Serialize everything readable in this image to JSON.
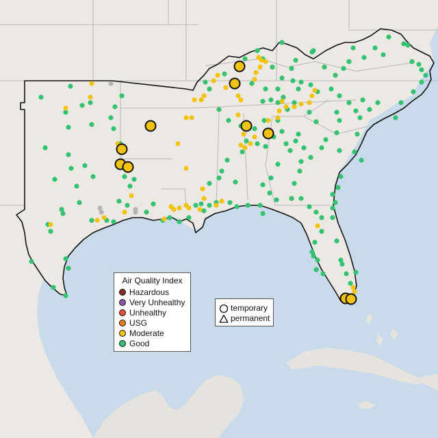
{
  "map": {
    "colors": {
      "ocean": "#c9dbea",
      "land": "#ece9e4",
      "land_outside": "#e6e3df",
      "state_border": "#b9b6b3",
      "region_outline": "#111111",
      "marker_outline": "#111111"
    },
    "aqi_colors": {
      "hazardous": "#7e2e22",
      "very_unhealthy": "#8e55a6",
      "unhealthy": "#e54a35",
      "usg": "#e47f22",
      "moderate": "#f2c312",
      "good": "#33c272",
      "no_data": "#b4b4b4"
    }
  },
  "legend": {
    "title": "Air Quality Index",
    "items": [
      {
        "label": "Hazardous",
        "color": "#7e2e22"
      },
      {
        "label": "Very Unhealthy",
        "color": "#8e55a6"
      },
      {
        "label": "Unhealthy",
        "color": "#e54a35"
      },
      {
        "label": "USG",
        "color": "#e47f22"
      },
      {
        "label": "Moderate",
        "color": "#f2c312"
      },
      {
        "label": "Good",
        "color": "#33c272"
      }
    ]
  },
  "monitor_legend": {
    "temporary_label": "temporary",
    "permanent_label": "permanent",
    "temporary_icon": "circle-outline-icon",
    "permanent_icon": "triangle-outline-icon"
  }
}
